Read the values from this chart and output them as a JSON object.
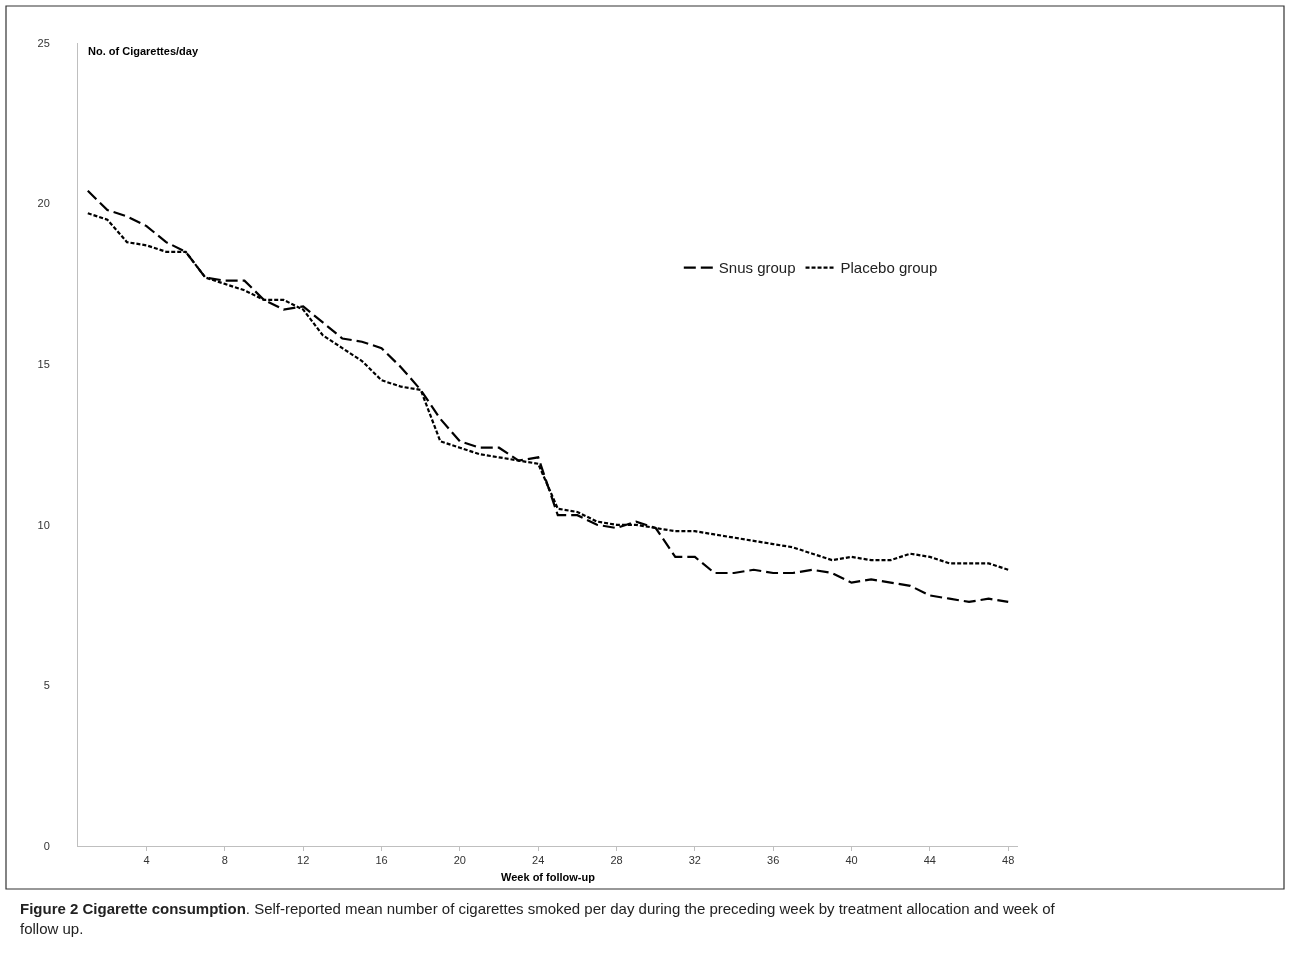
{
  "chart_data": {
    "type": "line",
    "title": "Figure 2 Cigarette consumption",
    "subtitle": ". Self-reported mean number of cigarettes smoked per day during the preceding week by treatment allocation and week of follow up.",
    "xlabel": "Week of follow-up",
    "ylabel": "No. of Cigarettes/day",
    "x": [
      1,
      2,
      3,
      4,
      5,
      6,
      7,
      8,
      9,
      10,
      11,
      12,
      13,
      14,
      15,
      16,
      17,
      18,
      19,
      20,
      21,
      22,
      23,
      24,
      25,
      26,
      27,
      28,
      29,
      30,
      31,
      32,
      33,
      34,
      35,
      36,
      37,
      38,
      39,
      40,
      41,
      42,
      43,
      44,
      45,
      46,
      47,
      48
    ],
    "series": [
      {
        "name": "Snus group",
        "color": "#000000",
        "line_style": "dashed",
        "values": [
          20.4,
          19.8,
          19.6,
          19.3,
          18.8,
          18.5,
          17.7,
          17.6,
          17.6,
          17.0,
          16.7,
          16.8,
          16.3,
          15.8,
          15.7,
          15.5,
          14.9,
          14.2,
          13.3,
          12.6,
          12.4,
          12.4,
          12.0,
          12.1,
          10.3,
          10.3,
          10.0,
          9.9,
          10.1,
          9.9,
          9.0,
          9.0,
          8.5,
          8.5,
          8.6,
          8.5,
          8.5,
          8.6,
          8.5,
          8.2,
          8.3,
          8.2,
          8.1,
          7.8,
          7.7,
          7.6,
          7.7,
          7.6
        ]
      },
      {
        "name": "Placebo group",
        "color": "#000000",
        "line_style": "dotted",
        "values": [
          19.7,
          19.5,
          18.8,
          18.7,
          18.5,
          18.5,
          17.7,
          17.5,
          17.3,
          17.0,
          17.0,
          16.7,
          15.9,
          15.5,
          15.1,
          14.5,
          14.3,
          14.2,
          12.6,
          12.4,
          12.2,
          12.1,
          12.0,
          11.9,
          10.5,
          10.4,
          10.1,
          10.0,
          10.0,
          9.9,
          9.8,
          9.8,
          9.7,
          9.6,
          9.5,
          9.4,
          9.3,
          9.1,
          8.9,
          9.0,
          8.9,
          8.9,
          9.1,
          9.0,
          8.8,
          8.8,
          8.8,
          8.6
        ]
      }
    ],
    "xlim": [
      0.5,
      48.5
    ],
    "xticks": [
      4,
      8,
      12,
      16,
      20,
      24,
      28,
      32,
      36,
      40,
      44,
      48
    ],
    "ylim": [
      0,
      25
    ],
    "yticks": [
      0,
      5,
      10,
      15,
      20,
      25
    ],
    "grid": false,
    "legend": "top right",
    "marker": "none"
  }
}
